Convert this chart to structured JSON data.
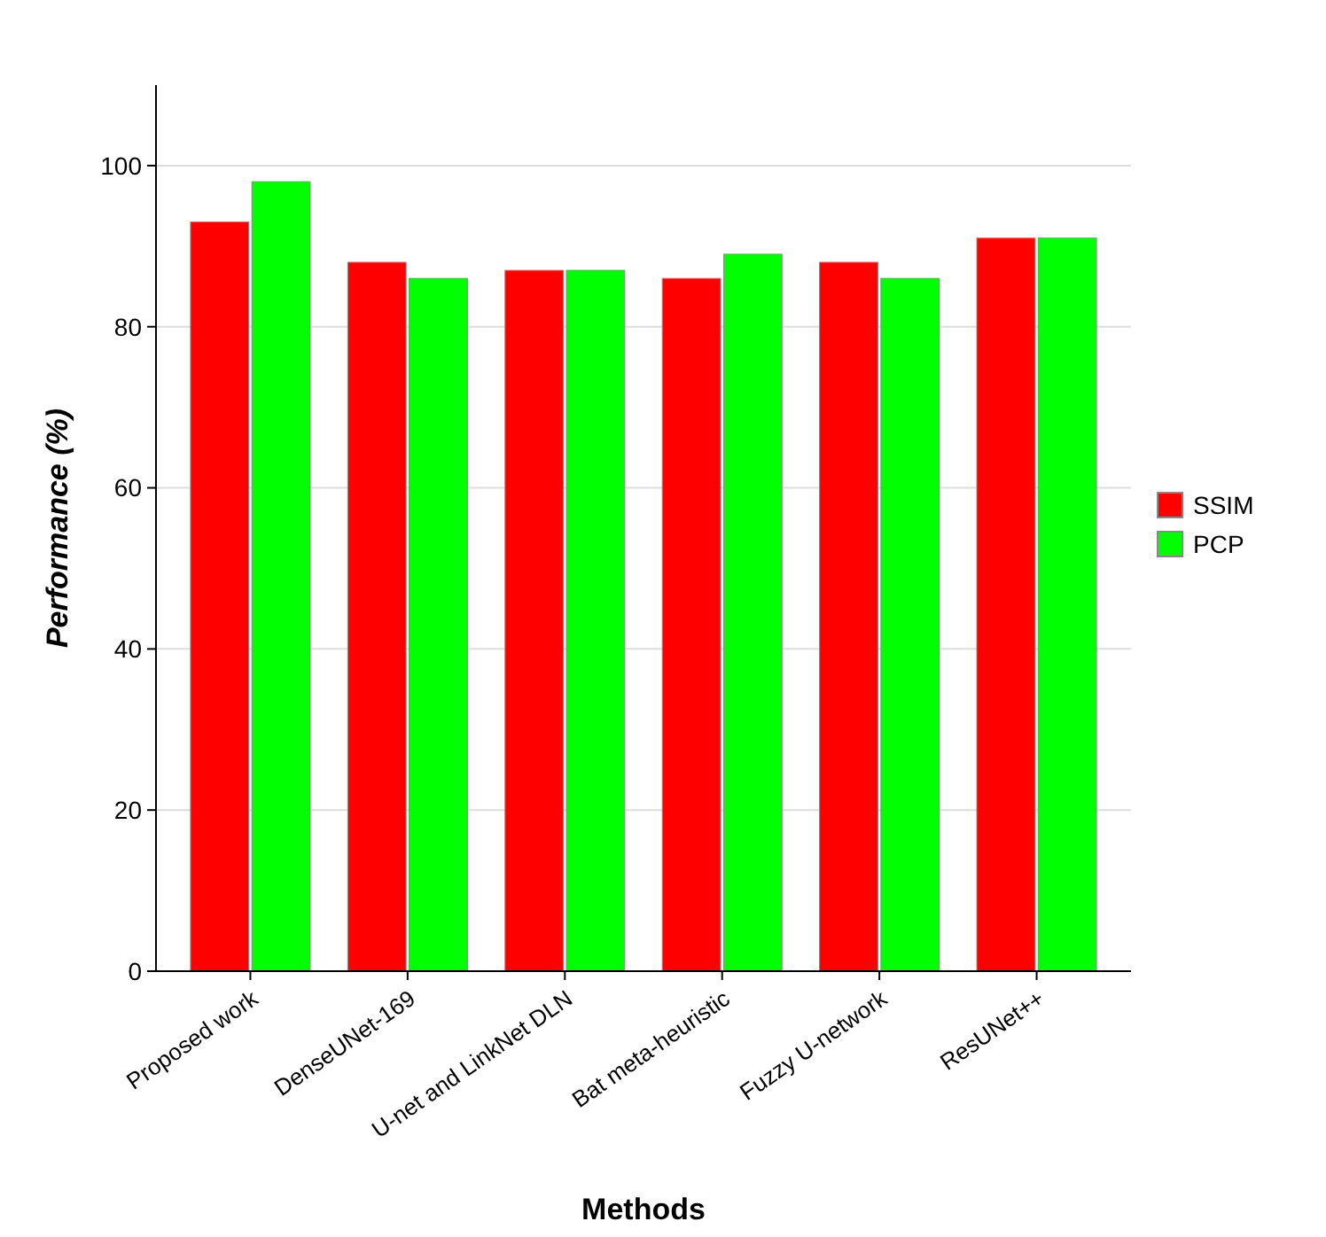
{
  "chart_data": {
    "type": "bar",
    "xlabel": "Methods",
    "ylabel": "Performance (%)",
    "categories": [
      "Proposed work",
      "DenseUNet-169",
      "U-net and LinkNet DLN",
      "Bat meta-heuristic",
      "Fuzzy U-network",
      "ResUNet++"
    ],
    "series": [
      {
        "name": "SSIM",
        "color": "#ff0000",
        "values": [
          93,
          88,
          87,
          86,
          88,
          91
        ]
      },
      {
        "name": "PCP",
        "color": "#00ff00",
        "values": [
          98,
          86,
          87,
          89,
          86,
          91
        ]
      }
    ],
    "ylim": [
      0,
      110
    ],
    "yticks": [
      0,
      20,
      40,
      60,
      80,
      100
    ],
    "grid": true,
    "legend": "right"
  }
}
